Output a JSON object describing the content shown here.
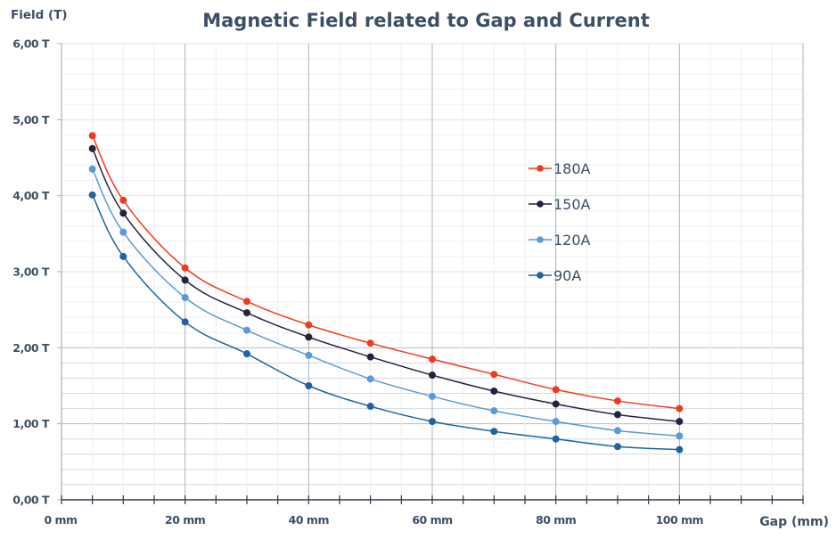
{
  "chart_data": {
    "type": "line",
    "title": "Magnetic Field related to Gap and Current",
    "xlabel": "Gap (mm)",
    "ylabel": "Field (T)",
    "xlim": [
      0,
      120
    ],
    "ylim": [
      0,
      6
    ],
    "x_ticks": [
      0,
      20,
      40,
      60,
      80,
      100
    ],
    "x_tick_labels": [
      "0 mm",
      "20 mm",
      "40 mm",
      "60 mm",
      "80 mm",
      "100 mm"
    ],
    "y_ticks": [
      0,
      1,
      2,
      3,
      4,
      5,
      6
    ],
    "y_tick_labels": [
      "0,00 T",
      "1,00 T",
      "2,00 T",
      "3,00 T",
      "4,00 T",
      "5,00 T",
      "6,00 T"
    ],
    "grid": true,
    "legend_position": "center-right",
    "x": [
      5,
      10,
      20,
      30,
      40,
      50,
      60,
      70,
      80,
      90,
      100
    ],
    "series": [
      {
        "name": "180A",
        "color": "#f03a1f",
        "values": [
          4.79,
          3.94,
          3.05,
          2.61,
          2.3,
          2.06,
          1.85,
          1.65,
          1.45,
          1.3,
          1.2
        ]
      },
      {
        "name": "150A",
        "color": "#25223f",
        "values": [
          4.62,
          3.77,
          2.89,
          2.46,
          2.14,
          1.88,
          1.64,
          1.43,
          1.26,
          1.12,
          1.03
        ]
      },
      {
        "name": "120A",
        "color": "#5b9bd5",
        "values": [
          4.35,
          3.52,
          2.66,
          2.23,
          1.9,
          1.59,
          1.36,
          1.17,
          1.03,
          0.91,
          0.84
        ]
      },
      {
        "name": "90A",
        "color": "#1f64a0",
        "values": [
          4.01,
          3.2,
          2.34,
          1.92,
          1.5,
          1.23,
          1.03,
          0.9,
          0.8,
          0.7,
          0.66
        ]
      }
    ]
  }
}
